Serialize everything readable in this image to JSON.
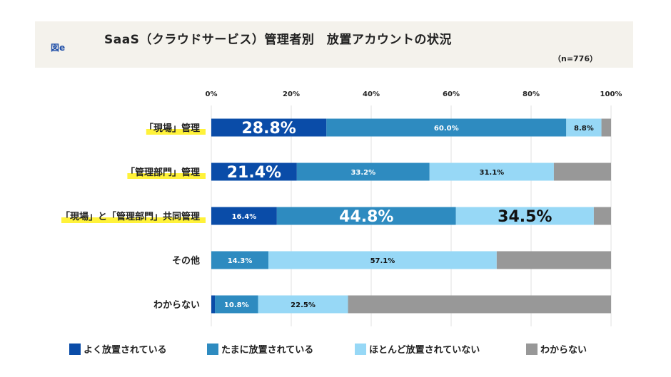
{
  "header": {
    "figure_label": "図e",
    "title": "SaaS（クラウドサービス）管理者別　放置アカウントの状況",
    "sample": "（n=776）"
  },
  "colors": {
    "often": "#0a4ca8",
    "sometimes": "#2e8bc0",
    "rarely": "#97d8f6",
    "unknown": "#989898",
    "highlight": "#fff23a"
  },
  "chart_data": {
    "type": "bar",
    "orientation": "horizontal",
    "stacked": true,
    "title": "SaaS（クラウドサービス）管理者別　放置アカウントの状況",
    "xlim": [
      0,
      100
    ],
    "x_ticks": [
      "0%",
      "20%",
      "40%",
      "60%",
      "80%",
      "100%"
    ],
    "grid": true,
    "legend_position": "bottom",
    "categories": [
      "「現場」管理",
      "「管理部門」管理",
      "「現場」と「管理部門」共同管理",
      "その他",
      "わからない"
    ],
    "highlighted_categories": [
      0,
      1,
      2
    ],
    "series": [
      {
        "name": "よく放置されている",
        "values": [
          28.8,
          21.4,
          16.4,
          0,
          0.9
        ],
        "labels": [
          "28.8%",
          "21.4%",
          "16.4%",
          "",
          ""
        ]
      },
      {
        "name": "たまに放置されている",
        "values": [
          60.0,
          33.2,
          44.8,
          14.3,
          10.8
        ],
        "labels": [
          "60.0%",
          "33.2%",
          "44.8%",
          "14.3%",
          "10.8%"
        ]
      },
      {
        "name": "ほとんど放置されていない",
        "values": [
          8.8,
          31.1,
          34.5,
          57.1,
          22.5
        ],
        "labels": [
          "8.8%",
          "31.1%",
          "34.5%",
          "57.1%",
          "22.5%"
        ]
      },
      {
        "name": "わからない",
        "values": [
          2.4,
          14.3,
          4.3,
          28.6,
          65.8
        ],
        "labels": [
          "",
          "",
          "",
          "",
          ""
        ]
      }
    ],
    "emphasized_labels": [
      [
        0,
        0
      ],
      [
        1,
        0
      ],
      [
        2,
        1
      ],
      [
        2,
        2
      ]
    ]
  }
}
